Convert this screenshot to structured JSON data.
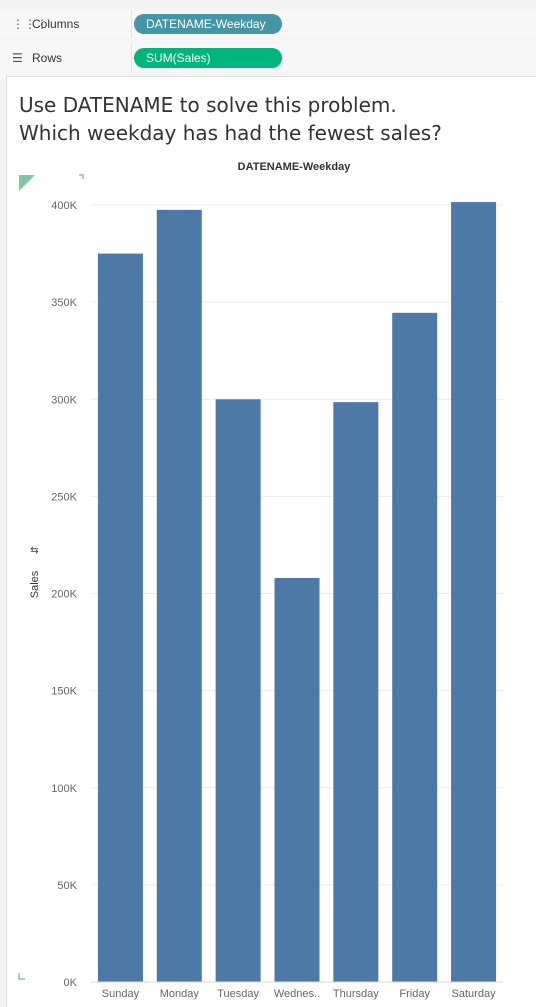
{
  "shelves": {
    "columns": {
      "label": "Columns",
      "pill": "DATENAME-Weekday"
    },
    "rows": {
      "label": "Rows",
      "pill": "SUM(Sales)"
    }
  },
  "caption": {
    "line1": "Use DATENAME to solve this problem.",
    "line2": "Which weekday has had the fewest sales?"
  },
  "colors": {
    "bar": "#4e79a7",
    "columns_pill": "#4496a6",
    "rows_pill": "#00b47a"
  },
  "chart_data": {
    "type": "bar",
    "title": "DATENAME-Weekday",
    "xlabel": "",
    "ylabel": "Sales",
    "categories": [
      "Sunday",
      "Monday",
      "Tuesday",
      "Wednes..",
      "Thursday",
      "Friday",
      "Saturday"
    ],
    "values": [
      375000,
      397500,
      300000,
      208000,
      298500,
      344500,
      401500
    ],
    "ylim": [
      0,
      400000
    ],
    "yticks": [
      0,
      50000,
      100000,
      150000,
      200000,
      250000,
      300000,
      350000,
      400000
    ],
    "ytick_labels": [
      "0K",
      "50K",
      "100K",
      "150K",
      "200K",
      "250K",
      "300K",
      "350K",
      "400K"
    ],
    "grid": true,
    "legend": "none"
  }
}
